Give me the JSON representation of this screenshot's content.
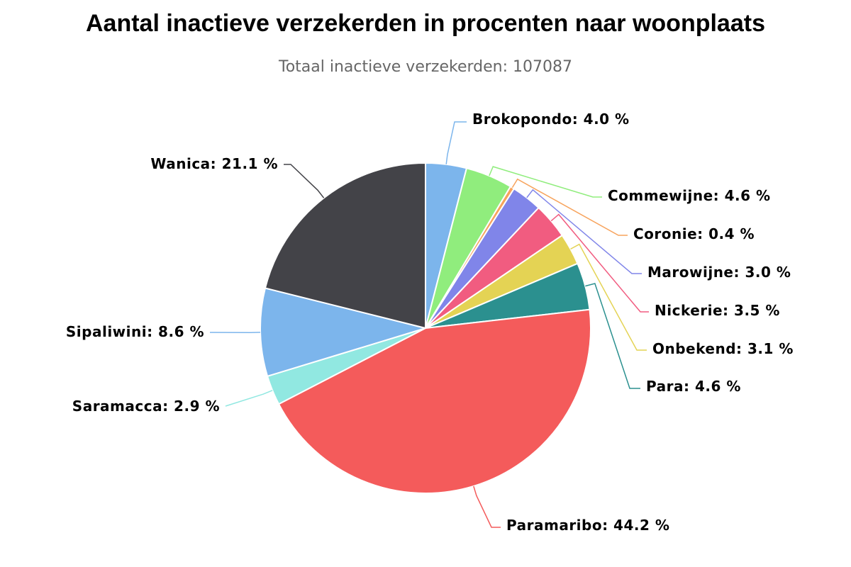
{
  "chart_data": {
    "type": "pie",
    "title": "Aantal inactieve verzekerden in procenten naar woonplaats",
    "subtitle": "Totaal inactieve verzekerden: 107087",
    "unit": "%",
    "slices": [
      {
        "label": "Brokopondo",
        "value": 4.0,
        "color": "#7cb5ec"
      },
      {
        "label": "Commewijne",
        "value": 4.6,
        "color": "#90ed7d"
      },
      {
        "label": "Coronie",
        "value": 0.4,
        "color": "#f7a35c"
      },
      {
        "label": "Marowijne",
        "value": 3.0,
        "color": "#8085e9"
      },
      {
        "label": "Nickerie",
        "value": 3.5,
        "color": "#f15c80"
      },
      {
        "label": "Onbekend",
        "value": 3.1,
        "color": "#e4d354"
      },
      {
        "label": "Para",
        "value": 4.6,
        "color": "#2b908f"
      },
      {
        "label": "Paramaribo",
        "value": 44.2,
        "color": "#f45b5b"
      },
      {
        "label": "Saramacca",
        "value": 2.9,
        "color": "#91e8e1"
      },
      {
        "label": "Sipaliwini",
        "value": 8.6,
        "color": "#7cb5ec"
      },
      {
        "label": "Wanica",
        "value": 21.1,
        "color": "#434348"
      }
    ],
    "label_format": "{label}: {value} %"
  }
}
